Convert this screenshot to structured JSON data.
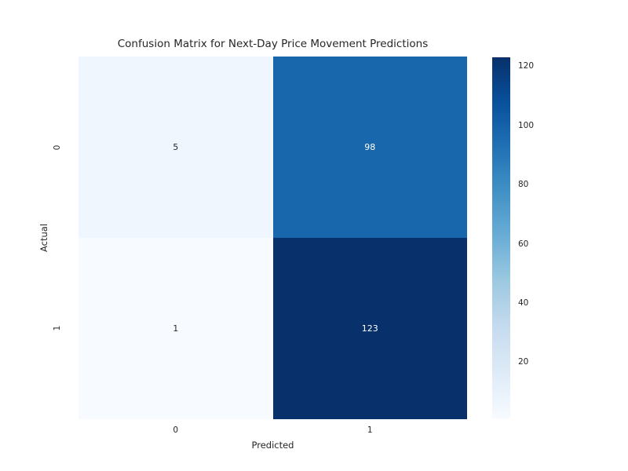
{
  "chart_data": {
    "type": "heatmap",
    "title": "Confusion Matrix for Next-Day Price Movement Predictions",
    "xlabel": "Predicted",
    "ylabel": "Actual",
    "x_tick_labels": [
      "0",
      "1"
    ],
    "y_tick_labels": [
      "0",
      "1"
    ],
    "matrix": [
      [
        5,
        98
      ],
      [
        1,
        123
      ]
    ],
    "vmin": 1,
    "vmax": 123,
    "colormap": "Blues",
    "colormap_stops": [
      "#f7fbff",
      "#deebf7",
      "#c6dbef",
      "#9ecae1",
      "#6baed6",
      "#4292c6",
      "#2171b5",
      "#08519c",
      "#08306b"
    ],
    "colorbar_ticks": [
      20,
      40,
      60,
      80,
      100,
      120
    ],
    "colorbar_position": "right",
    "cell_colors": [
      [
        "#f0f6fd",
        "#1866ac"
      ],
      [
        "#f7fbff",
        "#08306b"
      ]
    ],
    "cell_text_colors": [
      [
        "#262626",
        "#ffffff"
      ],
      [
        "#262626",
        "#ffffff"
      ]
    ],
    "text_color": "#262626",
    "grid": false
  }
}
